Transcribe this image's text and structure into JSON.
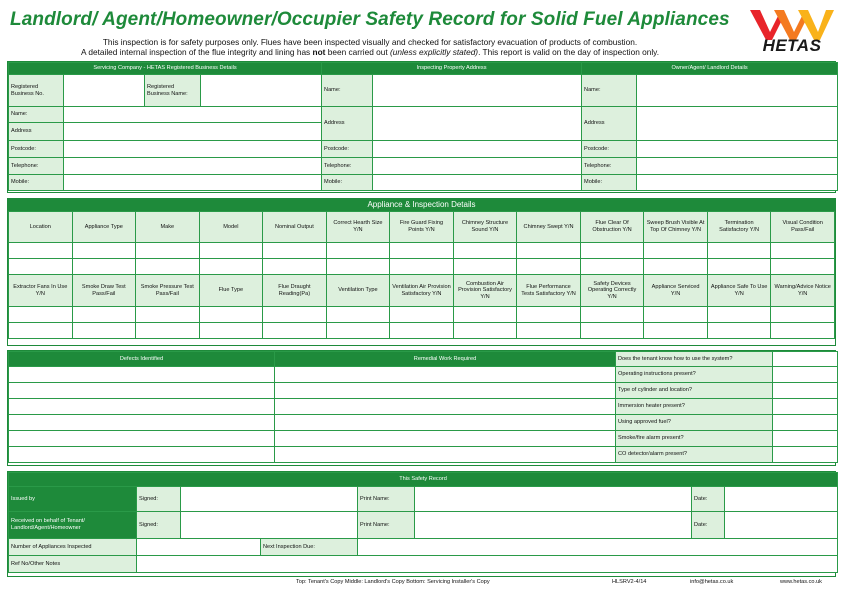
{
  "title": "Landlord/ Agent/Homeowner/Occupier Safety Record for Solid Fuel Appliances",
  "intro": {
    "line1": "This inspection is for safety purposes only. Flues have been inspected visually and checked for satisfactory evacuation of products of combustion.",
    "line2_a": "A detailed internal inspection of the flue integrity and lining has ",
    "line2_not": "not",
    "line2_b": " been carried out ",
    "line2_italic": "(unless explicitly stated)",
    "line2_c": ". This report is valid on the day of inspection only."
  },
  "logo": {
    "text": "HETAS",
    "colors": [
      "#e8242a",
      "#f47a20",
      "#f9b21a"
    ]
  },
  "top": {
    "servicing_header": "Servicing Company - HETAS Registered Business Details",
    "inspecting_header": "Inspecting Property Address",
    "owner_header": "Owner/Agent/ Landlord Details",
    "servicing_labels": {
      "reg_no": "Registered Business No.",
      "reg_name": "Registered Business Name:",
      "name": "Name:",
      "address": "Address",
      "postcode": "Postcode:",
      "telephone": "Telephone:",
      "mobile": "Mobile:"
    },
    "inspecting_labels": {
      "name": "Name:",
      "address": "Address",
      "postcode": "Postcode:",
      "telephone": "Telephone:",
      "mobile": "Mobile:"
    },
    "owner_labels": {
      "name": "Name:",
      "address": "Address",
      "postcode": "Postcode:",
      "telephone": "Telephone:",
      "mobile": "Mobile:"
    }
  },
  "appliance": {
    "header": "Appliance & Inspection Details",
    "row1": [
      "Location",
      "Appliance Type",
      "Make",
      "Model",
      "Nominal Output",
      "Correct Hearth Size Y/N",
      "Fire Guard Fixing Points Y/N",
      "Chimney Structure Sound Y/N",
      "Chimney Swept Y/N",
      "Flue Clear Of Obstruction Y/N",
      "Sweep Brush Visible At Top Of Chimney Y/N",
      "Termination Satisfactory Y/N",
      "Visual Condition Pass/Fail"
    ],
    "row2": [
      "Extractor Fans In Use Y/N",
      "Smoke Draw Test Pass/Fail",
      "Smoke Pressure Test Pass/Fail",
      "Flue Type",
      "Flue Draught Reading(Pa)",
      "Ventilation Type",
      "Ventilation Air Provision Satisfactory Y/N",
      "Combustion Air Provision Satisfactory Y/N",
      "Flue Performance Tests Satisfactory Y/N",
      "Safety Devices Operating Correctly Y/N",
      "Appliance Serviced Y/N",
      "Appliance Safe To Use Y/N",
      "Warning/Advice Notice Y/N"
    ]
  },
  "defects": {
    "defects_header": "Defects Identified",
    "remedial_header": "Remedial Work Required",
    "questions": [
      "Does the tenant know how to use the system?",
      "Operating instructions present?",
      "Type of cylinder and location?",
      "Immersion heater present?",
      "Using approved fuel?",
      "Smoke/fire alarm present?",
      "CO detector/alarm present?"
    ]
  },
  "record": {
    "header": "This Safety Record",
    "issued_by": "Issued by",
    "received_on": "Received on behalf of Tenant/ Landlord/Agent/Homeowner",
    "signed": "Signed:",
    "print_name": "Print Name:",
    "date": "Date:",
    "num_appliances": "Number of Appliances Inspected",
    "next_inspection": "Next Inspection Due:",
    "ref_notes": "Ref No/Other Notes"
  },
  "footer": {
    "copies": "Top: Tenant's Copy    Middle: Landlord's Copy    Bottom: Servicing Installer's Copy",
    "form_code": "HLSRV2-4/14",
    "email": "info@hetas.co.uk",
    "web": "www.hetas.co.uk"
  }
}
